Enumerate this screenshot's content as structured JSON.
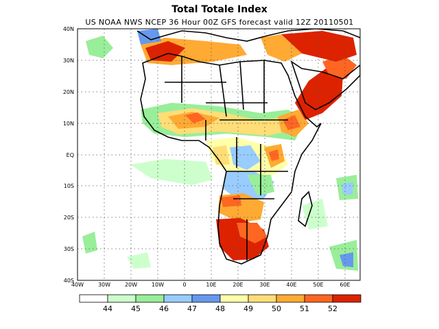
{
  "title": "Total Totale Index",
  "subtitle": "US NOAA NWS NCEP 36 Hour 00Z GFS forecast valid 12Z 20110501",
  "lat_labels": [
    "40N",
    "30N",
    "20N",
    "10N",
    "EQ",
    "10S",
    "20S",
    "30S",
    "40S"
  ],
  "lon_labels": [
    "40W",
    "30W",
    "20W",
    "10W",
    "0",
    "10E",
    "20E",
    "30E",
    "40E",
    "50E",
    "60E"
  ],
  "colorbar": {
    "colors": [
      "#ffffff",
      "#ccffcc",
      "#99ee99",
      "#99ccff",
      "#6699ee",
      "#ffffaa",
      "#ffdd77",
      "#ffaa33",
      "#ff6622",
      "#dd2200"
    ],
    "labels": [
      "44",
      "45",
      "46",
      "47",
      "48",
      "49",
      "50",
      "51",
      "52"
    ]
  }
}
